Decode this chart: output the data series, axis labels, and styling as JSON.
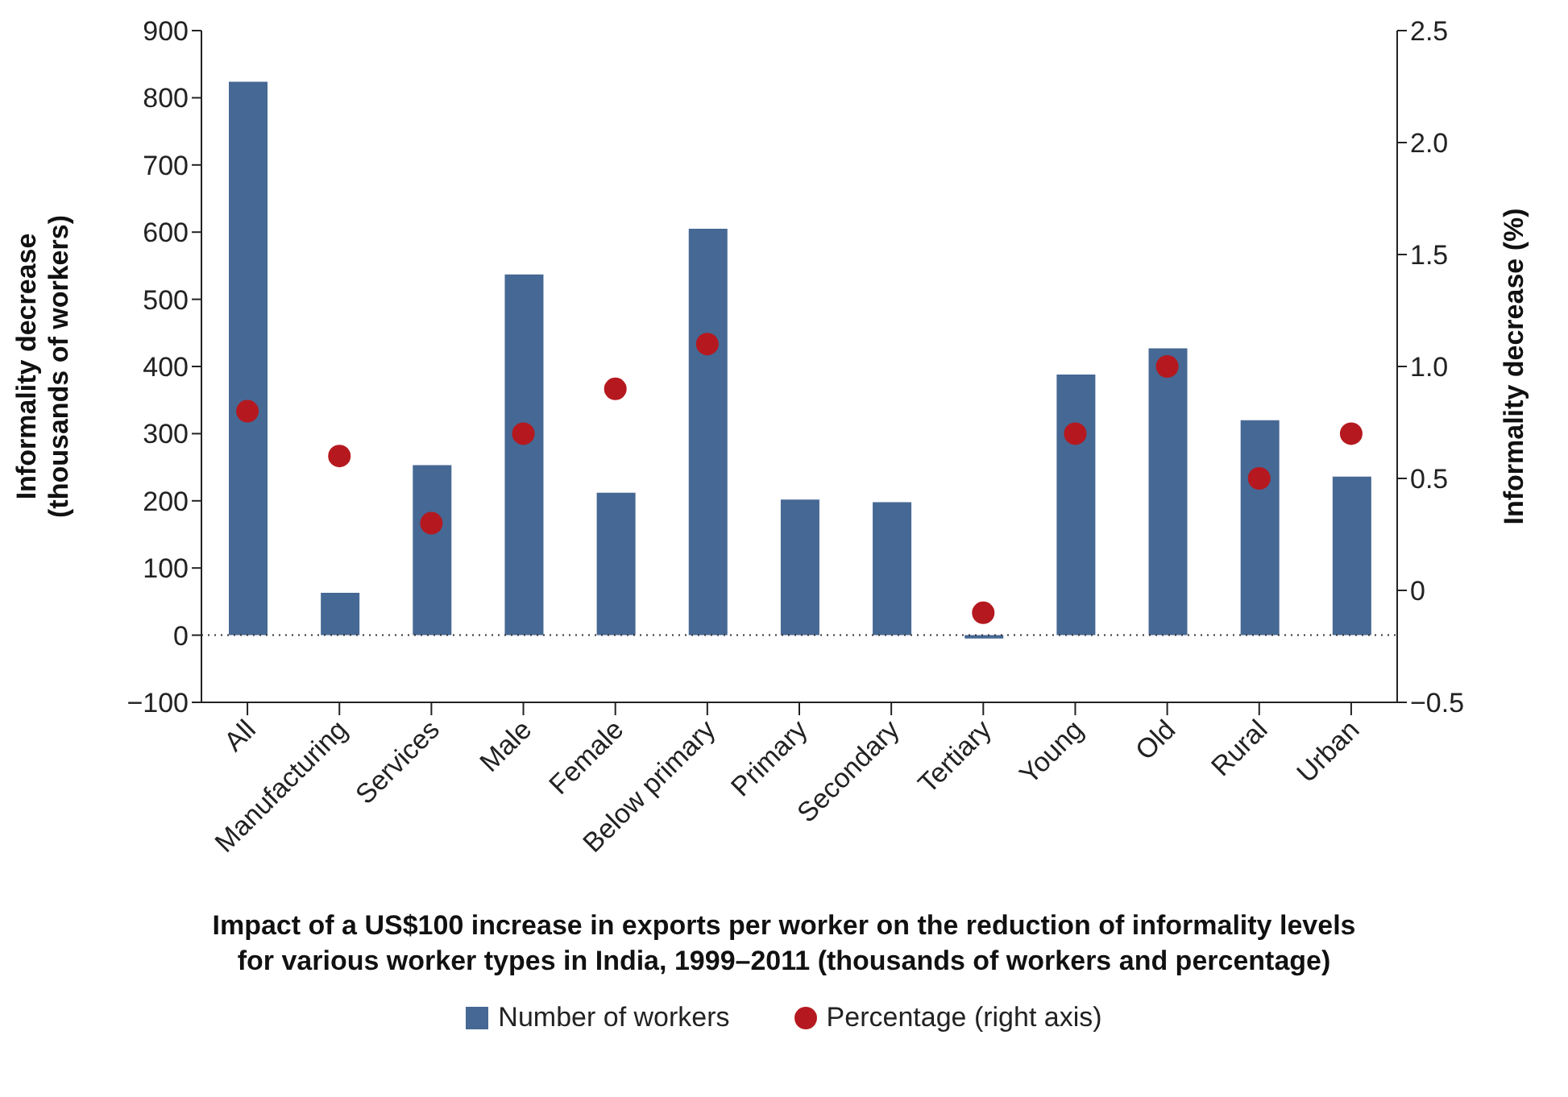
{
  "chart_data": {
    "type": "bar",
    "title": "Impact of a US$100 increase in exports per worker on the reduction of informality levels for various worker types in India, 1999–2011 (thousands of workers and percentage)",
    "ylabel": "Informality decrease (thousands of workers)",
    "y2label": "Informality decrease (%)",
    "categories": [
      "All",
      "Manufacturing",
      "Services",
      "Male",
      "Female",
      "Below primary",
      "Primary",
      "Secondary",
      "Tertiary",
      "Young",
      "Old",
      "Rural",
      "Urban"
    ],
    "series": [
      {
        "name": "Number of workers",
        "color": "#466894",
        "values": [
          824,
          63,
          253,
          537,
          212,
          605,
          202,
          198,
          -5,
          388,
          427,
          320,
          236
        ]
      },
      {
        "name": "Percentage (right axis)",
        "type": "scatter",
        "axis": "y2",
        "color": "#b5191f",
        "values": [
          0.8,
          0.6,
          0.3,
          0.7,
          0.9,
          1.1,
          null,
          null,
          -0.1,
          0.7,
          1.0,
          0.5,
          0.7
        ]
      }
    ],
    "ylim": [
      -100,
      900
    ],
    "yticks": [
      {
        "value": -100,
        "label": "−100"
      },
      0,
      100,
      200,
      300,
      400,
      500,
      600,
      700,
      800,
      900
    ],
    "y2lim": [
      -0.5,
      2.5
    ],
    "y2ticks": [
      {
        "value": -0.5,
        "label": "−0.5"
      },
      0,
      0.5,
      {
        "value": 1,
        "label": "1.0"
      },
      1.5,
      {
        "value": 2,
        "label": "2.0"
      },
      2.5
    ],
    "ref_lines": [
      {
        "axis": "y",
        "value": 0,
        "color": "#333333",
        "line_style": "dotted"
      }
    ],
    "grid": false,
    "legend": "bottom",
    "marker": "circle"
  }
}
